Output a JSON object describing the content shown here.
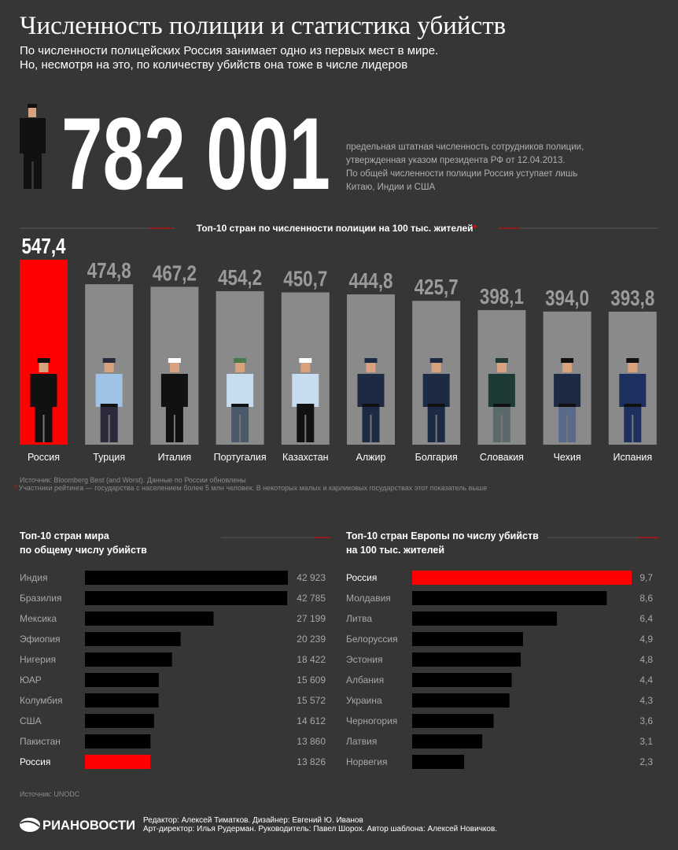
{
  "title": "Численность полиции и статистика убийств",
  "subtitle": [
    "По численности полицейских Россия занимает одно из первых мест в мире.",
    "Но, несмотря на это, по количеству убийств она тоже в числе лидеров"
  ],
  "big_number": "782 001",
  "big_number_note": [
    "предельная штатная численность сотрудников полиции,",
    "утвержденная указом президента РФ от 12.04.2013.",
    "По общей численности полиции Россия уступает лишь",
    "Китаю, Индии и США"
  ],
  "chart_data": [
    {
      "type": "bar",
      "title": "Топ-10 стран по численности полиции на 100 тыс. жителей",
      "title_mark": "*",
      "categories": [
        "Россия",
        "Турция",
        "Италия",
        "Португалия",
        "Казахстан",
        "Алжир",
        "Болгария",
        "Словакия",
        "Чехия",
        "Испания"
      ],
      "values": [
        547.4,
        474.8,
        467.2,
        454.2,
        450.7,
        444.8,
        425.7,
        398.1,
        394.0,
        393.8
      ],
      "value_labels": [
        "547,4",
        "474,8",
        "467,2",
        "454,2",
        "450,7",
        "444,8",
        "425,7",
        "398,1",
        "394,0",
        "393,8"
      ],
      "colors": [
        "#ff0000",
        "#8a8a8a",
        "#8a8a8a",
        "#8a8a8a",
        "#8a8a8a",
        "#8a8a8a",
        "#8a8a8a",
        "#8a8a8a",
        "#8a8a8a",
        "#8a8a8a"
      ],
      "highlight_color": "#ff0000",
      "notes": [
        "Источник: Bloomberg Best (and Worst). Данные по России обновлены",
        "Участники рейтинга — государства с населением более 5 млн человек. В некоторых малых и карликовых государствах этот показатель выше"
      ]
    },
    {
      "type": "hbar",
      "title": [
        "Топ-10 стран мира",
        "по общему числу убийств"
      ],
      "categories": [
        "Индия",
        "Бразилия",
        "Мексика",
        "Эфиопия",
        "Нигерия",
        "ЮАР",
        "Колумбия",
        "США",
        "Пакистан",
        "Россия"
      ],
      "values": [
        42923,
        42785,
        27199,
        20239,
        18422,
        15609,
        15572,
        14612,
        13860,
        13826
      ],
      "value_labels": [
        "42 923",
        "42 785",
        "27 199",
        "20 239",
        "18 422",
        "15 609",
        "15 572",
        "14 612",
        "13 860",
        "13 826"
      ],
      "colors": [
        "#000000",
        "#000000",
        "#000000",
        "#000000",
        "#000000",
        "#000000",
        "#000000",
        "#000000",
        "#000000",
        "#ff0000"
      ],
      "highlight_color": "#ff0000",
      "source": "Источник: UNODC"
    },
    {
      "type": "hbar",
      "title": [
        "Топ-10 стран Европы по числу убийств",
        "на 100 тыс. жителей"
      ],
      "categories": [
        "Россия",
        "Молдавия",
        "Литва",
        "Белоруссия",
        "Эстония",
        "Албания",
        "Украина",
        "Черногория",
        "Латвия",
        "Норвегия"
      ],
      "values": [
        9.7,
        8.6,
        6.4,
        4.9,
        4.8,
        4.4,
        4.3,
        3.6,
        3.1,
        2.3
      ],
      "value_labels": [
        "9,7",
        "8,6",
        "6,4",
        "4,9",
        "4,8",
        "4,4",
        "4,3",
        "3,6",
        "3,1",
        "2,3"
      ],
      "colors": [
        "#ff0000",
        "#000000",
        "#000000",
        "#000000",
        "#000000",
        "#000000",
        "#000000",
        "#000000",
        "#000000",
        "#000000"
      ],
      "highlight_color": "#ff0000"
    }
  ],
  "footer": {
    "logo": "РИАНОВОСТИ",
    "credits": [
      "Редактор: Алексей Тиматков. Дизайнер: Евгений Ю. Иванов",
      "Арт-директор: Илья Рудерман. Руководитель: Павел Шорох. Автор шаблона: Алексей Новичков."
    ]
  }
}
